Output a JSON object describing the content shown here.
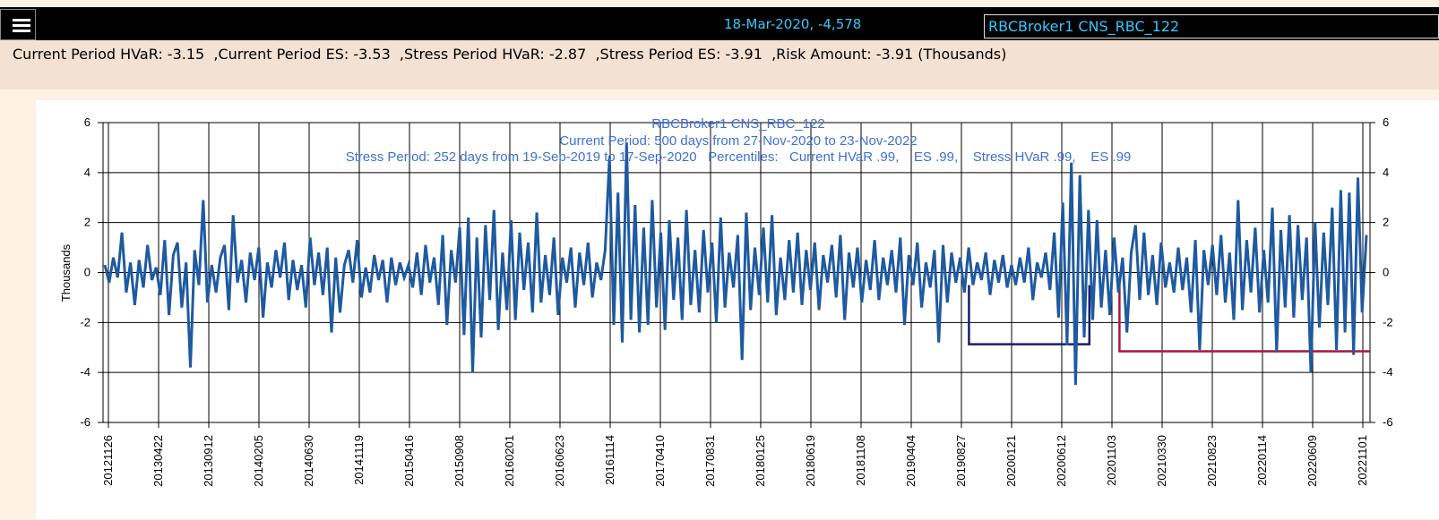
{
  "header": {
    "hover_readout": "18-Mar-2020, -4,578",
    "selected_chart": "RBCBroker1 CNS_RBC_122",
    "menu_icon": "hamburger-menu-icon"
  },
  "summary": {
    "text": "Current Period HVaR: -3.15  ,Current Period ES: -3.53  ,Stress Period HVaR: -2.87  ,Stress Period ES: -3.91  ,Risk Amount: -3.91 (Thousands)"
  },
  "chart_data": {
    "type": "line",
    "title": "RBCBroker1 CNS_RBC_122",
    "subtitle_1": "Current Period: 500 days from 27-Nov-2020 to 23-Nov-2022",
    "subtitle_2": "Stress Period: 252 days from 19-Sep-2019 to 17-Sep-2020   Percentiles:   Current HVaR .99,    ES .99,    Stress HVaR .99,    ES .99",
    "ylabel": "Thousands",
    "xlabel": "",
    "ylim": [
      -6,
      6
    ],
    "y_ticks": [
      6,
      4,
      2,
      0,
      -2,
      -4,
      -6
    ],
    "x_tick_labels": [
      "20121126",
      "20130422",
      "20130912",
      "20140205",
      "20140630",
      "20141119",
      "20150416",
      "20150908",
      "20160201",
      "20160623",
      "20161114",
      "20170410",
      "20170831",
      "20180125",
      "20180619",
      "20181108",
      "20190404",
      "20190827",
      "20200121",
      "20200612",
      "20201103",
      "20210330",
      "20210823",
      "20220114",
      "20220609",
      "20221101"
    ],
    "grid": true,
    "colors": {
      "series": "#1f5aa0",
      "stress_bracket": "#1b1d6e",
      "current_bracket": "#a8163f"
    },
    "series": [
      {
        "values": [
          0.3,
          -0.4,
          0.6,
          -0.2,
          1.6,
          -0.8,
          0.4,
          -1.3,
          0.5,
          -0.6,
          1.1,
          -0.3,
          0.2,
          -0.9,
          1.3,
          -1.7,
          0.7,
          1.2,
          -1.4,
          0.4,
          -3.8,
          0.9,
          -0.5,
          2.9,
          -1.2,
          0.3,
          -0.8,
          0.6,
          1.1,
          -1.5,
          2.3,
          -0.4,
          0.5,
          -1.2,
          0.8,
          -0.3,
          1.0,
          -1.8,
          0.4,
          -0.6,
          0.9,
          -0.2,
          1.2,
          -1.1,
          0.5,
          -0.7,
          0.3,
          -1.4,
          1.4,
          -0.5,
          0.8,
          -0.9,
          1.0,
          -2.4,
          0.6,
          -1.6,
          0.3,
          0.9,
          -0.4,
          1.3,
          -1.0,
          0.2,
          -0.8,
          0.7,
          -0.3,
          0.5,
          -1.2,
          0.6,
          -0.5,
          0.4,
          -0.2,
          0.3,
          -0.6,
          0.8,
          -0.9,
          1.1,
          -0.4,
          0.6,
          -1.3,
          1.5,
          -2.1,
          0.9,
          -0.4,
          1.8,
          -2.5,
          2.2,
          -4.0,
          1.4,
          -2.6,
          1.9,
          -1.1,
          2.5,
          -2.3,
          0.8,
          -1.5,
          2.1,
          -1.9,
          1.6,
          -0.7,
          1.2,
          -1.6,
          2.4,
          -1.2,
          0.7,
          -0.9,
          1.4,
          -1.7,
          0.6,
          -0.4,
          1.0,
          -1.4,
          0.8,
          -0.5,
          1.2,
          -1.0,
          0.4,
          -0.3,
          0.9,
          4.6,
          -2.1,
          3.2,
          -2.8,
          5.2,
          -1.9,
          2.7,
          -2.4,
          1.8,
          -2.1,
          2.9,
          -1.4,
          1.6,
          -2.3,
          2.1,
          -1.1,
          1.4,
          -1.9,
          2.5,
          -1.3,
          0.9,
          -1.6,
          1.7,
          -0.8,
          1.2,
          -2.0,
          2.2,
          -1.4,
          0.8,
          -0.6,
          1.5,
          -3.5,
          2.4,
          -1.5,
          1.0,
          -0.9,
          1.8,
          -1.2,
          2.3,
          -1.7,
          0.6,
          -1.1,
          1.3,
          -0.8,
          1.6,
          -1.3,
          0.9,
          -0.7,
          1.2,
          -1.5,
          0.7,
          -0.4,
          1.1,
          -1.0,
          1.5,
          -1.9,
          0.8,
          -0.6,
          1.0,
          -1.2,
          0.5,
          -0.7,
          1.3,
          -1.1,
          0.6,
          -0.5,
          0.9,
          -0.8,
          1.4,
          -2.1,
          0.7,
          -0.5,
          1.2,
          -1.4,
          0.4,
          -0.6,
          0.9,
          -2.8,
          1.1,
          -1.2,
          0.8,
          -0.4,
          0.6,
          -0.8,
          1.0,
          -0.5,
          0.4,
          -0.3,
          0.8,
          -0.9,
          0.5,
          -0.4,
          0.7,
          -0.6,
          0.3,
          -0.5,
          0.6,
          -0.4,
          1.0,
          -1.1,
          0.4,
          -0.2,
          0.8,
          -0.7,
          1.6,
          -1.8,
          2.8,
          -2.9,
          4.4,
          -4.5,
          3.9,
          -2.6,
          2.5,
          -1.9,
          2.1,
          -1.4,
          0.9,
          -1.7,
          1.4,
          -0.8,
          0.6,
          -2.4,
          0.8,
          1.9,
          -1.1,
          1.6,
          -0.9,
          0.7,
          -1.3,
          1.2,
          -0.6,
          0.4,
          -0.8,
          1.0,
          -0.7,
          0.6,
          -1.6,
          1.3,
          -3.1,
          0.9,
          -0.5,
          1.1,
          -0.9,
          1.5,
          -1.2,
          0.8,
          -1.9,
          2.9,
          -1.5,
          1.3,
          -0.8,
          1.8,
          -1.6,
          0.9,
          -1.2,
          2.6,
          -3.2,
          1.7,
          -1.4,
          2.3,
          -1.8,
          1.9,
          -1.1,
          1.4,
          -4.0,
          2.0,
          -2.2,
          1.6,
          -1.3,
          2.6,
          -3.1,
          3.3,
          -2.4,
          3.2,
          -3.3,
          3.8,
          -1.6,
          1.5
        ]
      }
    ],
    "stress_hvar": -2.87,
    "current_hvar": -3.15
  }
}
